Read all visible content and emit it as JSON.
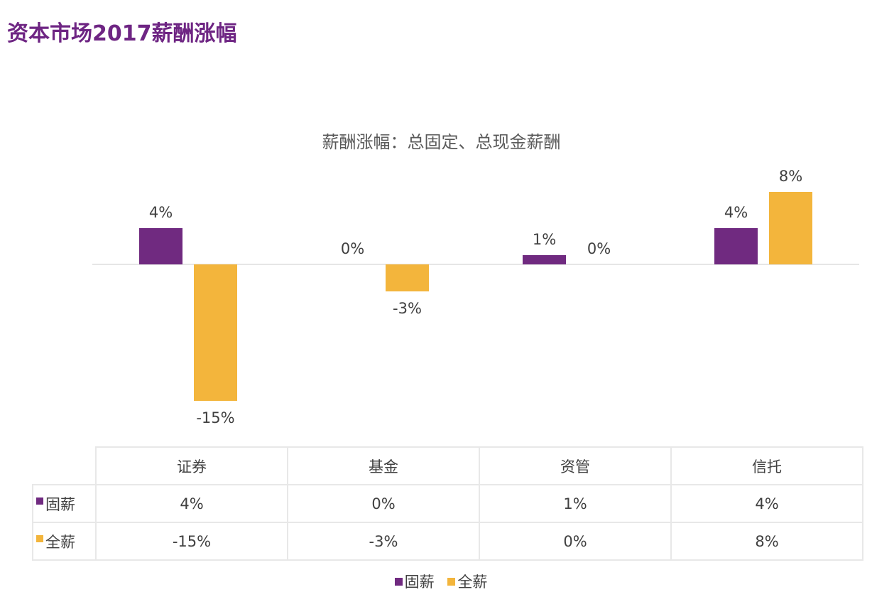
{
  "page": {
    "title": "资本市场2017薪酬涨幅"
  },
  "chart_data": {
    "type": "bar",
    "title": "薪酬涨幅：总固定、总现金薪酬",
    "categories": [
      "证券",
      "基金",
      "资管",
      "信托"
    ],
    "series": [
      {
        "name": "固薪",
        "color": "#702a80",
        "values": [
          4,
          0,
          1,
          4
        ],
        "labels": [
          "4%",
          "0%",
          "1%",
          "4%"
        ]
      },
      {
        "name": "全薪",
        "color": "#f3b53c",
        "values": [
          -15,
          -3,
          0,
          8
        ],
        "labels": [
          "-15%",
          "-3%",
          "0%",
          "8%"
        ]
      }
    ],
    "xlabel": "",
    "ylabel": "",
    "ylim": [
      -16,
      9
    ],
    "grid": false,
    "legend_position": "bottom",
    "data_table": true
  },
  "table": {
    "headers": [
      "证券",
      "基金",
      "资管",
      "信托"
    ],
    "rows": [
      {
        "label": "固薪",
        "values": [
          "4%",
          "0%",
          "1%",
          "4%"
        ]
      },
      {
        "label": "全薪",
        "values": [
          "-15%",
          "-3%",
          "0%",
          "8%"
        ]
      }
    ]
  },
  "legend": {
    "items": [
      {
        "label": "固薪",
        "color": "#702a80"
      },
      {
        "label": "全薪",
        "color": "#f3b53c"
      }
    ]
  }
}
